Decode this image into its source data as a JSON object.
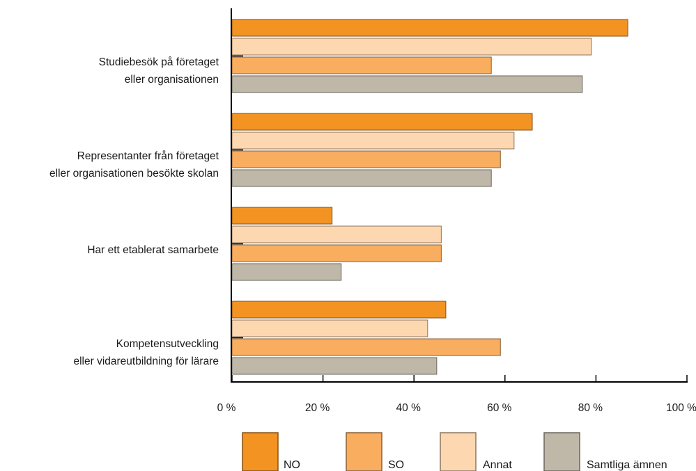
{
  "chart_data": {
    "type": "bar",
    "orientation": "horizontal",
    "categories": [
      [
        "Studiebesök på företaget",
        "eller organisationen"
      ],
      [
        "Representanter från företaget",
        "eller organisationen besökte skolan"
      ],
      [
        "Har ett etablerat samarbete"
      ],
      [
        "Kompetensutveckling",
        "eller vidareutbildning för lärare"
      ]
    ],
    "series": [
      {
        "name": "NO",
        "color": "#f39322",
        "values": [
          87,
          66,
          22,
          47
        ]
      },
      {
        "name": "SO",
        "color": "#f9ad5e",
        "values": [
          57,
          59,
          46,
          59
        ]
      },
      {
        "name": "Annat",
        "color": "#fcd7b0",
        "values": [
          79,
          62,
          46,
          43
        ]
      },
      {
        "name": "Samtliga ämnen",
        "color": "#bfb8a8",
        "values": [
          77,
          57,
          24,
          45
        ]
      }
    ],
    "bar_order": [
      "NO",
      "Annat",
      "SO",
      "Samtliga ämnen"
    ],
    "x_ticks": [
      0,
      20,
      40,
      60,
      80,
      100
    ],
    "x_tick_labels": [
      "0 %",
      "20 %",
      "40 %",
      "60 %",
      "80 %",
      "100 %"
    ],
    "xlim": [
      0,
      100
    ],
    "grid": false,
    "legend_position": "bottom",
    "title": "",
    "xlabel": "",
    "ylabel": ""
  }
}
